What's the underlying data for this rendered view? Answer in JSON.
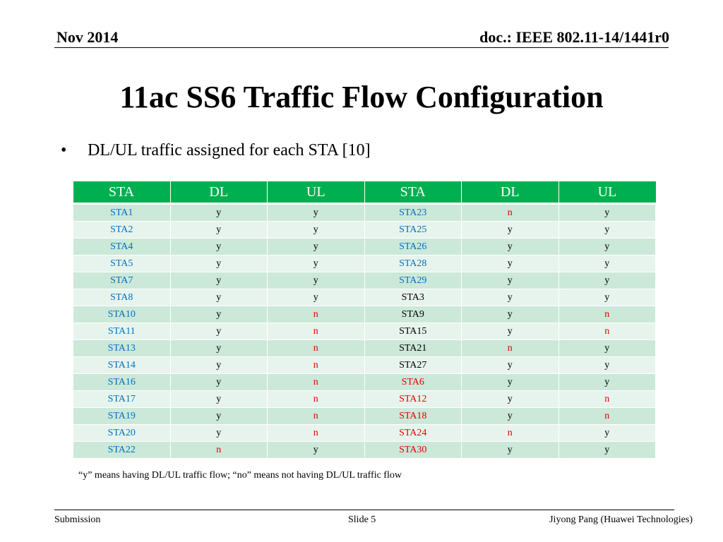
{
  "header": {
    "date": "Nov 2014",
    "doc": "doc.: IEEE 802.11-14/1441r0"
  },
  "title": "11ac SS6 Traffic Flow Configuration",
  "bullet": {
    "symbol": "•",
    "text": "DL/UL traffic assigned for each STA [10]"
  },
  "table": {
    "columns": [
      "STA",
      "DL",
      "UL",
      "STA",
      "DL",
      "UL"
    ],
    "rows": [
      [
        {
          "t": "STA1",
          "c": "blue"
        },
        {
          "t": "y",
          "c": "black"
        },
        {
          "t": "y",
          "c": "black"
        },
        {
          "t": "STA23",
          "c": "blue"
        },
        {
          "t": "n",
          "c": "red"
        },
        {
          "t": "y",
          "c": "black"
        }
      ],
      [
        {
          "t": "STA2",
          "c": "blue"
        },
        {
          "t": "y",
          "c": "black"
        },
        {
          "t": "y",
          "c": "black"
        },
        {
          "t": "STA25",
          "c": "blue"
        },
        {
          "t": "y",
          "c": "black"
        },
        {
          "t": "y",
          "c": "black"
        }
      ],
      [
        {
          "t": "STA4",
          "c": "blue"
        },
        {
          "t": "y",
          "c": "black"
        },
        {
          "t": "y",
          "c": "black"
        },
        {
          "t": "STA26",
          "c": "blue"
        },
        {
          "t": "y",
          "c": "black"
        },
        {
          "t": "y",
          "c": "black"
        }
      ],
      [
        {
          "t": "STA5",
          "c": "blue"
        },
        {
          "t": "y",
          "c": "black"
        },
        {
          "t": "y",
          "c": "black"
        },
        {
          "t": "STA28",
          "c": "blue"
        },
        {
          "t": "y",
          "c": "black"
        },
        {
          "t": "y",
          "c": "black"
        }
      ],
      [
        {
          "t": "STA7",
          "c": "blue"
        },
        {
          "t": "y",
          "c": "black"
        },
        {
          "t": "y",
          "c": "black"
        },
        {
          "t": "STA29",
          "c": "blue"
        },
        {
          "t": "y",
          "c": "black"
        },
        {
          "t": "y",
          "c": "black"
        }
      ],
      [
        {
          "t": "STA8",
          "c": "blue"
        },
        {
          "t": "y",
          "c": "black"
        },
        {
          "t": "y",
          "c": "black"
        },
        {
          "t": "STA3",
          "c": "black"
        },
        {
          "t": "y",
          "c": "black"
        },
        {
          "t": "y",
          "c": "black"
        }
      ],
      [
        {
          "t": "STA10",
          "c": "blue"
        },
        {
          "t": "y",
          "c": "black"
        },
        {
          "t": "n",
          "c": "red"
        },
        {
          "t": "STA9",
          "c": "black"
        },
        {
          "t": "y",
          "c": "black"
        },
        {
          "t": "n",
          "c": "red"
        }
      ],
      [
        {
          "t": "STA11",
          "c": "blue"
        },
        {
          "t": "y",
          "c": "black"
        },
        {
          "t": "n",
          "c": "red"
        },
        {
          "t": "STA15",
          "c": "black"
        },
        {
          "t": "y",
          "c": "black"
        },
        {
          "t": "n",
          "c": "red"
        }
      ],
      [
        {
          "t": "STA13",
          "c": "blue"
        },
        {
          "t": "y",
          "c": "black"
        },
        {
          "t": "n",
          "c": "red"
        },
        {
          "t": "STA21",
          "c": "black"
        },
        {
          "t": "n",
          "c": "red"
        },
        {
          "t": "y",
          "c": "black"
        }
      ],
      [
        {
          "t": "STA14",
          "c": "blue"
        },
        {
          "t": "y",
          "c": "black"
        },
        {
          "t": "n",
          "c": "red"
        },
        {
          "t": "STA27",
          "c": "black"
        },
        {
          "t": "y",
          "c": "black"
        },
        {
          "t": "y",
          "c": "black"
        }
      ],
      [
        {
          "t": "STA16",
          "c": "blue"
        },
        {
          "t": "y",
          "c": "black"
        },
        {
          "t": "n",
          "c": "red"
        },
        {
          "t": "STA6",
          "c": "red"
        },
        {
          "t": "y",
          "c": "black"
        },
        {
          "t": "y",
          "c": "black"
        }
      ],
      [
        {
          "t": "STA17",
          "c": "blue"
        },
        {
          "t": "y",
          "c": "black"
        },
        {
          "t": "n",
          "c": "red"
        },
        {
          "t": "STA12",
          "c": "red"
        },
        {
          "t": "y",
          "c": "black"
        },
        {
          "t": "n",
          "c": "red"
        }
      ],
      [
        {
          "t": "STA19",
          "c": "blue"
        },
        {
          "t": "y",
          "c": "black"
        },
        {
          "t": "n",
          "c": "red"
        },
        {
          "t": "STA18",
          "c": "red"
        },
        {
          "t": "y",
          "c": "black"
        },
        {
          "t": "n",
          "c": "red"
        }
      ],
      [
        {
          "t": "STA20",
          "c": "blue"
        },
        {
          "t": "y",
          "c": "black"
        },
        {
          "t": "n",
          "c": "red"
        },
        {
          "t": "STA24",
          "c": "red"
        },
        {
          "t": "n",
          "c": "red"
        },
        {
          "t": "y",
          "c": "black"
        }
      ],
      [
        {
          "t": "STA22",
          "c": "blue"
        },
        {
          "t": "n",
          "c": "red"
        },
        {
          "t": "y",
          "c": "black"
        },
        {
          "t": "STA30",
          "c": "red"
        },
        {
          "t": "y",
          "c": "black"
        },
        {
          "t": "y",
          "c": "black"
        }
      ]
    ]
  },
  "note": "“y” means having DL/UL traffic flow; “no” means not having DL/UL traffic flow",
  "footer": {
    "left": "Submission",
    "center": "Slide 5",
    "right": "Jiyong Pang (Huawei Technologies)"
  },
  "colors": {
    "header_green": "#00b050",
    "row_dark": "#cbe8d9",
    "row_light": "#e7f4ed",
    "text_blue": "#0070c0",
    "text_red": "#e00000"
  }
}
